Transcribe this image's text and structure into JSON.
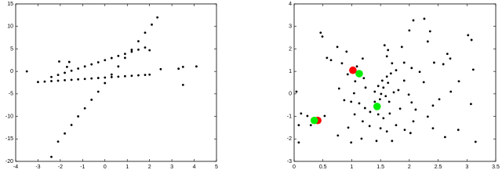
{
  "chart_data": [
    {
      "type": "scatter",
      "xlim": [
        -4,
        5
      ],
      "ylim": [
        -20,
        15
      ],
      "xticks": [
        -4,
        -3,
        -2,
        -1,
        0,
        1,
        2,
        3,
        4,
        5
      ],
      "yticks": [
        -20,
        -15,
        -10,
        -5,
        0,
        5,
        10,
        15
      ],
      "series": [
        {
          "color": "#000000",
          "x": [
            -2.1,
            -1.8,
            -1.5,
            -1.2,
            -0.9,
            -0.6,
            -0.3,
            0,
            0.3,
            0.6,
            0.9,
            1.2,
            1.5,
            1.8,
            2.1,
            2.35,
            -2.4,
            -2.1,
            -1.8,
            -1.5,
            -1.2,
            -0.9,
            -0.6,
            -0.3,
            0,
            0.3,
            0.6,
            0.9,
            1.2,
            1.5,
            1.8,
            -3,
            -2.7,
            -2.4,
            -2.1,
            -1.8,
            -1.5,
            -1.2,
            -0.9,
            -0.6,
            -0.3,
            0,
            0.3,
            0.6,
            0.9,
            1.2,
            1.5,
            1.8,
            2.0,
            -3.5,
            -2.05,
            -1.6,
            -1.7,
            2.5,
            3.3,
            3.5,
            4.1,
            3.5,
            -2.4,
            2.0
          ],
          "values": [
            -15.6,
            -13.8,
            -11.9,
            -10.0,
            -8.2,
            -6.3,
            -4.5,
            -2.6,
            -0.7,
            1.1,
            3.0,
            4.8,
            6.7,
            8.6,
            10.4,
            12.0,
            -1.24,
            -0.78,
            -0.31,
            0.16,
            0.63,
            1.1,
            1.56,
            2.03,
            2.5,
            2.97,
            3.44,
            3.9,
            4.37,
            4.84,
            5.31,
            -2.36,
            -2.26,
            -2.16,
            -2.06,
            -1.96,
            -1.87,
            -1.77,
            -1.67,
            -1.57,
            -1.47,
            -1.37,
            -1.27,
            -1.17,
            -1.07,
            -0.97,
            -0.87,
            -0.78,
            -0.71,
            0,
            2.2,
            2.1,
            1.0,
            0.5,
            0.6,
            1.0,
            1.1,
            -3.0,
            -19,
            4.7
          ]
        }
      ]
    },
    {
      "type": "scatter",
      "xlim": [
        0,
        3.5
      ],
      "ylim": [
        -3,
        4
      ],
      "xticks": [
        0,
        0.5,
        1,
        1.5,
        2,
        2.5,
        3,
        3.5
      ],
      "yticks": [
        -3,
        -2,
        -1,
        0,
        1,
        2,
        3,
        4
      ],
      "series": [
        {
          "color": "#000000",
          "x": [
            0.46,
            0.49,
            0.91,
            0.75,
            0.57,
            1.19,
            2.07,
            2.26,
            2.36,
            2.0,
            2.32,
            3.02,
            3.08,
            3.11,
            2.66,
            2.71,
            2.59,
            2.43,
            1.87,
            1.57,
            1.63,
            1.61,
            1.7,
            1.77,
            1.68,
            1.61,
            1.53,
            1.46,
            1.55,
            1.63,
            1.4,
            1.51,
            1.59,
            1.49,
            1.4,
            1.65,
            1.73,
            1.81,
            1.91,
            1.99,
            2.11,
            2.04,
            1.84,
            1.66,
            1.55,
            1.46,
            1.32,
            1.23,
            1.13,
            1.19,
            1.31,
            1.5,
            1.61,
            1.77,
            1.92,
            2.07,
            2.32,
            2.41,
            2.52,
            2.72,
            2.86,
            2.25,
            2.18,
            2.04,
            1.91,
            0.83,
            0.93,
            1.06,
            1.21,
            1.24,
            1.04,
            0.78,
            0.87,
            0.99,
            1.05,
            0.94,
            0.76,
            1.17,
            0.99,
            1.43,
            1.7,
            2.02,
            2.41,
            2.62,
            3.15,
            2.85,
            3.07,
            0.08,
            0.08,
            0.12,
            0.04,
            0.23,
            0.29,
            0.53,
            0.64,
            1.09
          ],
          "values": [
            2.72,
            2.55,
            1.88,
            2.09,
            1.6,
            1.57,
            3.27,
            3.34,
            2.78,
            2.82,
            2.33,
            2.61,
            2.4,
            1.08,
            1.78,
            1.57,
            1.32,
            1.39,
            2.09,
            2.16,
            1.95,
            1.67,
            1.36,
            1.05,
            0.91,
            0.77,
            0.59,
            0.35,
            0.28,
            0.49,
            0.1,
            0,
            -0.1,
            -0.24,
            -0.35,
            -0.35,
            0.07,
            0.17,
            0.59,
            -0.03,
            -0.7,
            -0.38,
            -0.66,
            -0.87,
            -1.08,
            -0.91,
            -0.8,
            -0.63,
            -0.42,
            -1.22,
            -1.43,
            -1.53,
            -1.67,
            -1.39,
            -1.6,
            -1.22,
            -1.01,
            -0.52,
            -0.24,
            0.1,
            0.56,
            0.52,
            0.98,
            1.15,
            1.39,
            1.36,
            0.87,
            0.56,
            0.7,
            0.28,
            0.03,
            0.24,
            -0.28,
            -0.35,
            -0.91,
            -1.5,
            -1.85,
            -1.99,
            -2.16,
            -2.09,
            -2.09,
            -1.74,
            -1.53,
            -1.92,
            -2.13,
            -1.6,
            -0.45,
            -1.39,
            -2.16,
            -0.87,
            0.1,
            -0.98,
            -1.39,
            -0.98,
            1.5,
            1.22
          ]
        },
        {
          "color": "#ff0000",
          "x": [
            1.02,
            0.41
          ],
          "values": [
            1.05,
            -1.18
          ]
        },
        {
          "color": "#00ee00",
          "x": [
            1.13,
            1.44,
            0.35
          ],
          "values": [
            0.9,
            -0.56,
            -1.18
          ]
        }
      ]
    }
  ]
}
